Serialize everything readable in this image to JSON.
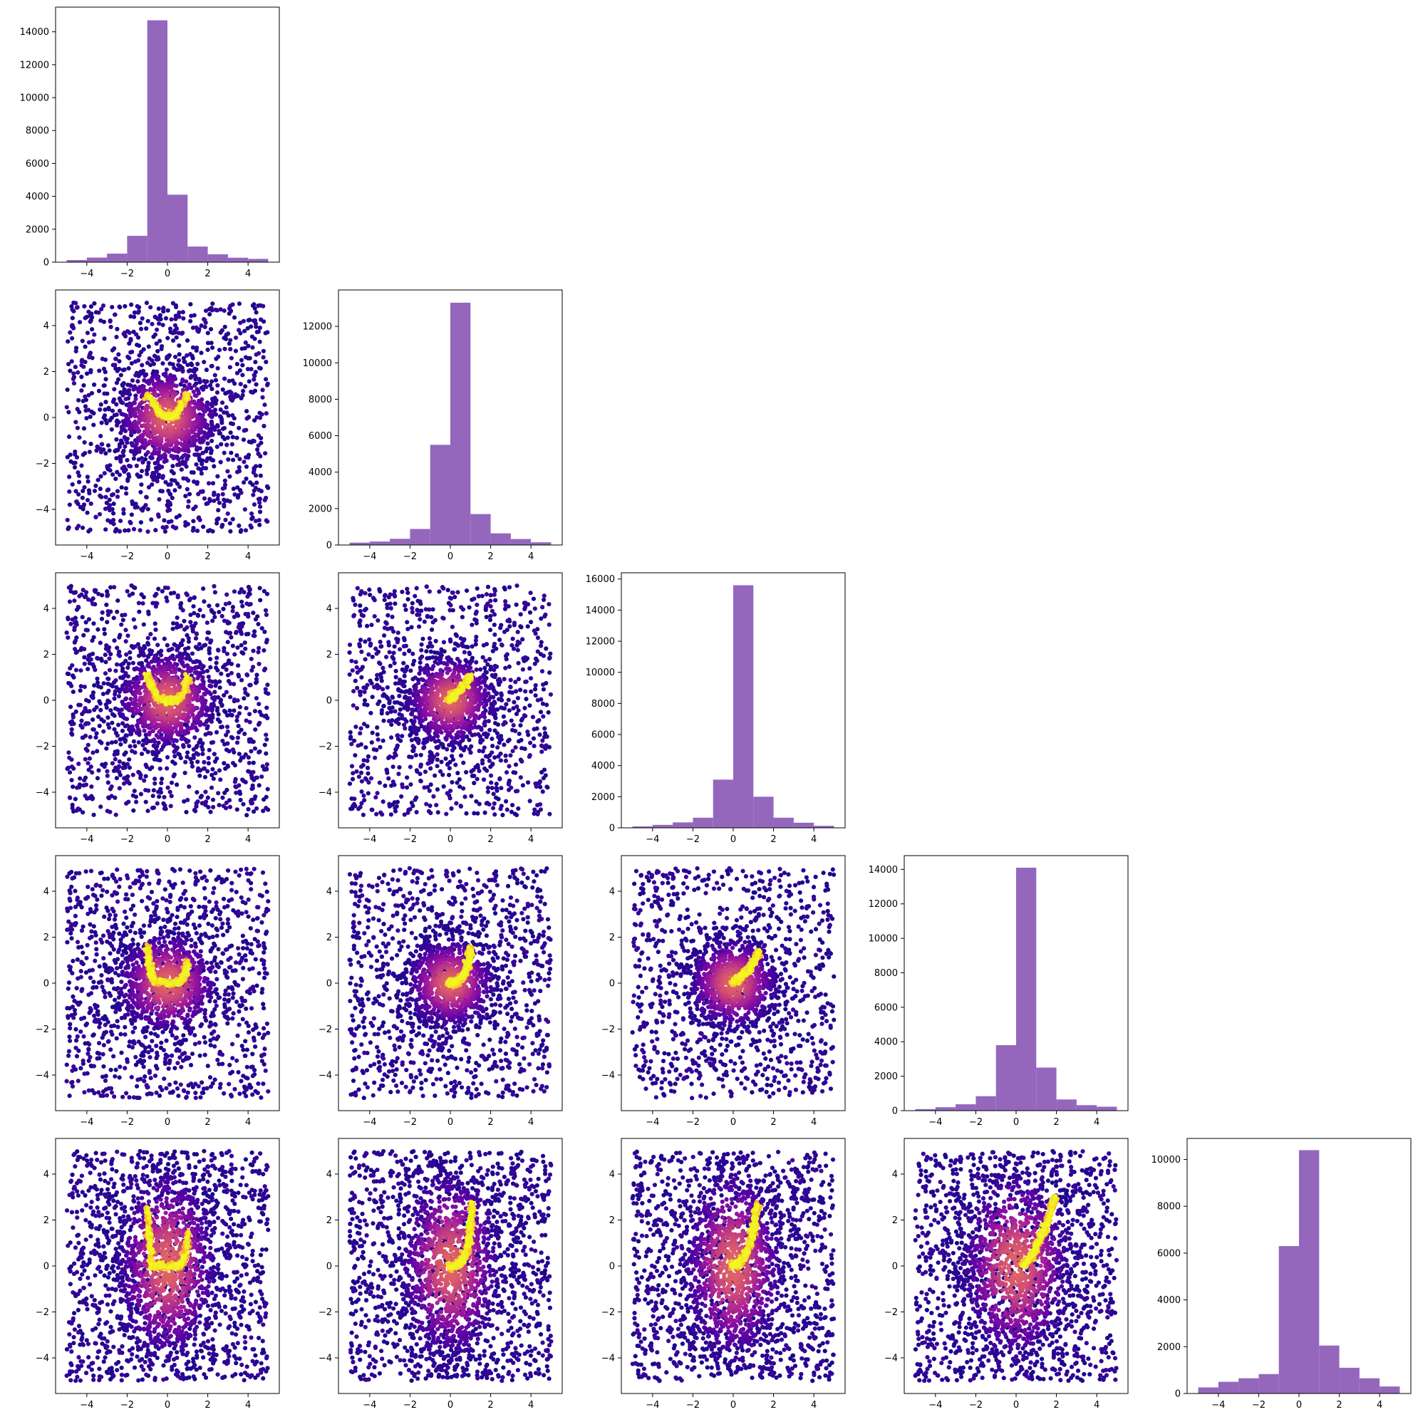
{
  "chart_data": {
    "type": "corner_plot",
    "n_variables": 5,
    "hist_color": "#9467bd",
    "scatter_colormap": [
      "#0d0887",
      "#5c01a6",
      "#9c179e",
      "#cc4778",
      "#ed7953",
      "#fdb42f",
      "#f0f921"
    ],
    "axis_range": [
      -5,
      5
    ],
    "x_ticks": [
      -4,
      -2,
      0,
      2,
      4
    ],
    "y_ticks_scatter": [
      -4,
      -2,
      0,
      2,
      4
    ],
    "histograms": [
      {
        "variable": 1,
        "bin_edges": [
          -5,
          -4,
          -3,
          -2,
          -1,
          0,
          1,
          2,
          3,
          4,
          5
        ],
        "counts": [
          130,
          280,
          520,
          1600,
          14700,
          4100,
          950,
          480,
          270,
          200
        ],
        "ylim": [
          0,
          15500
        ],
        "y_ticks": [
          0,
          2000,
          4000,
          6000,
          8000,
          10000,
          12000,
          14000
        ]
      },
      {
        "variable": 2,
        "bin_edges": [
          -5,
          -4,
          -3,
          -2,
          -1,
          0,
          1,
          2,
          3,
          4,
          5
        ],
        "counts": [
          130,
          190,
          340,
          880,
          5500,
          13300,
          1700,
          640,
          330,
          150
        ],
        "ylim": [
          0,
          14000
        ],
        "y_ticks": [
          0,
          2000,
          4000,
          6000,
          8000,
          10000,
          12000
        ]
      },
      {
        "variable": 3,
        "bin_edges": [
          -5,
          -4,
          -3,
          -2,
          -1,
          0,
          1,
          2,
          3,
          4,
          5
        ],
        "counts": [
          90,
          190,
          350,
          650,
          3100,
          15600,
          2000,
          650,
          330,
          130
        ],
        "ylim": [
          0,
          16400
        ],
        "y_ticks": [
          0,
          2000,
          4000,
          6000,
          8000,
          10000,
          12000,
          14000,
          16000
        ]
      },
      {
        "variable": 4,
        "bin_edges": [
          -5,
          -4,
          -3,
          -2,
          -1,
          0,
          1,
          2,
          3,
          4,
          5
        ],
        "counts": [
          90,
          200,
          370,
          840,
          3800,
          14100,
          2500,
          650,
          320,
          230
        ],
        "ylim": [
          0,
          14800
        ],
        "y_ticks": [
          0,
          2000,
          4000,
          6000,
          8000,
          10000,
          12000,
          14000
        ]
      },
      {
        "variable": 5,
        "bin_edges": [
          -5,
          -4,
          -3,
          -2,
          -1,
          0,
          1,
          2,
          3,
          4,
          5
        ],
        "counts": [
          260,
          500,
          650,
          830,
          6300,
          10400,
          2050,
          1100,
          650,
          300
        ],
        "ylim": [
          0,
          10900
        ],
        "y_ticks": [
          0,
          2000,
          4000,
          6000,
          8000,
          10000
        ]
      }
    ],
    "scatter_panels": [
      {
        "row": 2,
        "col": 1,
        "x_var": 1,
        "y_var": 2,
        "n_points": 2200,
        "core_sigma": [
          0.9,
          0.9
        ],
        "ridge": [
          [
            -1,
            1.0
          ],
          [
            -0.6,
            0.5
          ],
          [
            -0.3,
            0.15
          ],
          [
            0,
            0.0
          ],
          [
            0.4,
            0.1
          ],
          [
            0.7,
            0.5
          ],
          [
            1.0,
            1.0
          ]
        ]
      },
      {
        "row": 3,
        "col": 1,
        "x_var": 1,
        "y_var": 3,
        "n_points": 2200,
        "core_sigma": [
          0.9,
          0.9
        ],
        "ridge": [
          [
            -1,
            1.1
          ],
          [
            -0.8,
            0.6
          ],
          [
            -0.5,
            0.1
          ],
          [
            0,
            0.0
          ],
          [
            0.5,
            0.0
          ],
          [
            0.8,
            0.3
          ],
          [
            1.0,
            1.0
          ]
        ]
      },
      {
        "row": 3,
        "col": 2,
        "x_var": 2,
        "y_var": 3,
        "n_points": 2100,
        "core_sigma": [
          0.8,
          0.8
        ],
        "ridge": [
          [
            -0.1,
            0.0
          ],
          [
            0.2,
            0.2
          ],
          [
            0.5,
            0.5
          ],
          [
            0.8,
            0.8
          ],
          [
            1.0,
            1.1
          ]
        ]
      },
      {
        "row": 4,
        "col": 1,
        "x_var": 1,
        "y_var": 4,
        "n_points": 2300,
        "core_sigma": [
          0.9,
          0.9
        ],
        "ridge": [
          [
            -1,
            1.6
          ],
          [
            -0.9,
            0.8
          ],
          [
            -0.7,
            0.1
          ],
          [
            0,
            0.0
          ],
          [
            0.6,
            0.0
          ],
          [
            0.9,
            0.4
          ],
          [
            1.0,
            0.9
          ]
        ]
      },
      {
        "row": 4,
        "col": 2,
        "x_var": 2,
        "y_var": 4,
        "n_points": 2200,
        "core_sigma": [
          0.8,
          0.8
        ],
        "ridge": [
          [
            -0.1,
            0.0
          ],
          [
            0.3,
            0.0
          ],
          [
            0.7,
            0.4
          ],
          [
            0.9,
            0.9
          ],
          [
            1.0,
            1.5
          ]
        ]
      },
      {
        "row": 4,
        "col": 3,
        "x_var": 3,
        "y_var": 4,
        "n_points": 2100,
        "core_sigma": [
          0.8,
          0.8
        ],
        "ridge": [
          [
            -0.1,
            0.0
          ],
          [
            0.3,
            0.2
          ],
          [
            0.7,
            0.5
          ],
          [
            1.0,
            0.9
          ],
          [
            1.3,
            1.4
          ]
        ]
      },
      {
        "row": 5,
        "col": 1,
        "x_var": 1,
        "y_var": 5,
        "n_points": 2600,
        "core_sigma": [
          0.9,
          1.7
        ],
        "ridge": [
          [
            -1,
            2.5
          ],
          [
            -0.9,
            1.3
          ],
          [
            -0.8,
            0.0
          ],
          [
            0,
            0.0
          ],
          [
            0.6,
            0.0
          ],
          [
            0.9,
            0.5
          ],
          [
            1.0,
            1.5
          ]
        ]
      },
      {
        "row": 5,
        "col": 2,
        "x_var": 2,
        "y_var": 5,
        "n_points": 2600,
        "core_sigma": [
          0.9,
          1.7
        ],
        "ridge": [
          [
            -0.1,
            0.0
          ],
          [
            0.4,
            0.0
          ],
          [
            0.8,
            0.6
          ],
          [
            1.0,
            1.6
          ],
          [
            1.1,
            2.8
          ]
        ]
      },
      {
        "row": 5,
        "col": 3,
        "x_var": 3,
        "y_var": 5,
        "n_points": 2600,
        "core_sigma": [
          0.9,
          1.7
        ],
        "ridge": [
          [
            -0.1,
            0.0
          ],
          [
            0.3,
            0.1
          ],
          [
            0.7,
            0.6
          ],
          [
            1.0,
            1.5
          ],
          [
            1.2,
            2.7
          ]
        ]
      },
      {
        "row": 5,
        "col": 4,
        "x_var": 4,
        "y_var": 5,
        "n_points": 2600,
        "core_sigma": [
          1.0,
          1.7
        ],
        "ridge": [
          [
            0.3,
            0.0
          ],
          [
            0.8,
            0.5
          ],
          [
            1.2,
            1.2
          ],
          [
            1.6,
            2.0
          ],
          [
            1.9,
            3.0
          ]
        ]
      }
    ]
  }
}
